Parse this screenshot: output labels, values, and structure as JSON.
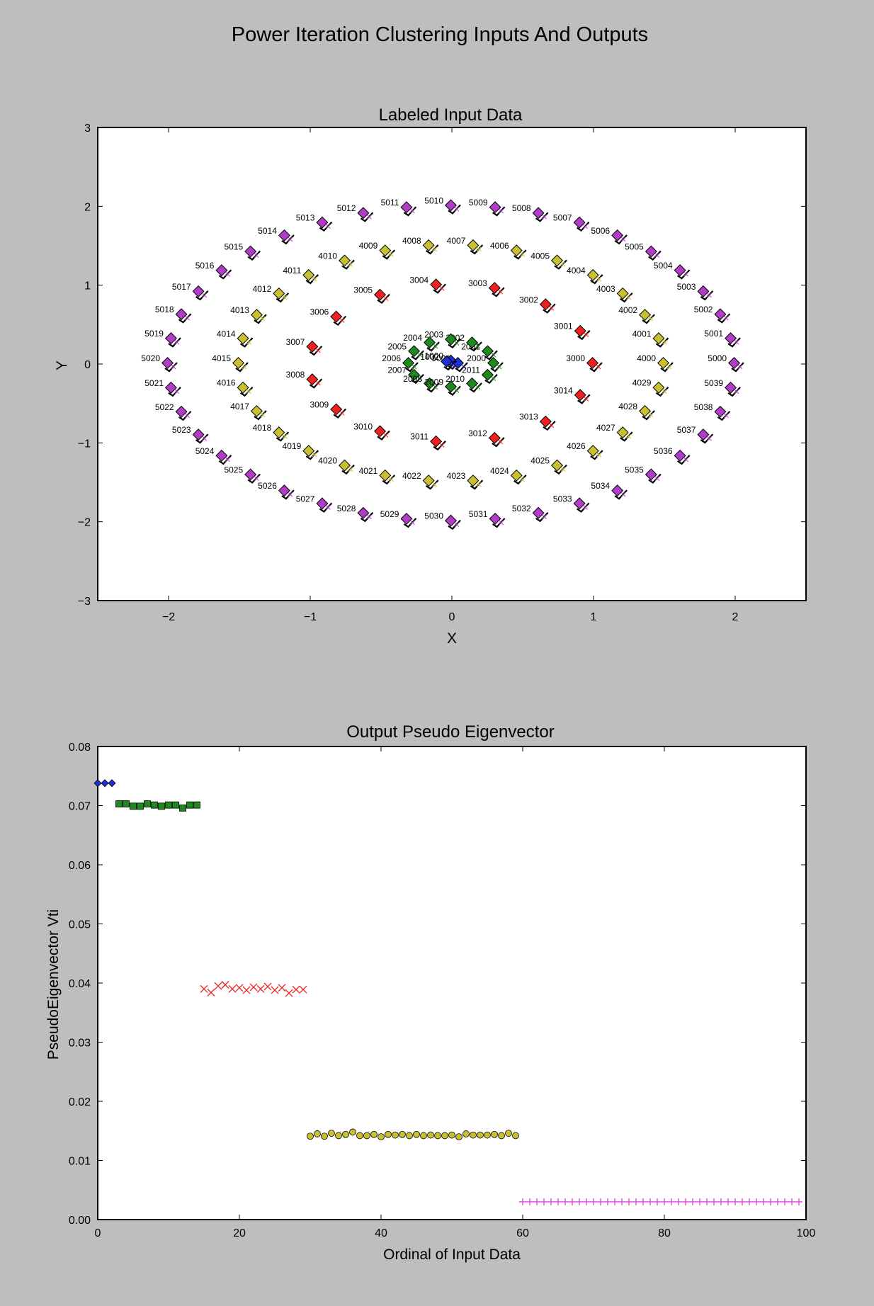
{
  "figure_title": "Power Iteration Clustering Inputs And Outputs",
  "colors": {
    "background": "#bebebe",
    "cluster1": "#1f2fd6",
    "cluster2": "#1e8a1e",
    "cluster3": "#ee2020",
    "cluster4": "#c8c030",
    "cluster5": "#b03cc8",
    "plus_marker": "#e040e0"
  },
  "chart_data": [
    {
      "type": "scatter",
      "title": "Labeled Input Data",
      "xlabel": "X",
      "ylabel": "Y",
      "xlim": [
        -2.5,
        2.5
      ],
      "ylim": [
        -3,
        3
      ],
      "xticks": [
        -2,
        -1,
        0,
        1,
        2
      ],
      "xtick_labels": [
        "−2",
        "−1",
        "0",
        "1",
        "2"
      ],
      "yticks": [
        -3,
        -2,
        -1,
        0,
        1,
        2,
        3
      ],
      "ytick_labels": [
        "−3",
        "−2",
        "−1",
        "0",
        "1",
        "2",
        "3"
      ],
      "series": [
        {
          "cluster": 1,
          "color": "#1f2fd6",
          "labels_start": 1000,
          "points": [
            [
              0.0,
              0.03
            ],
            [
              0.05,
              0.0
            ],
            [
              -0.03,
              0.02
            ]
          ],
          "show_labels": true
        },
        {
          "cluster": 2,
          "color": "#1e8a1e",
          "labels_start": 2000,
          "radius": 0.3,
          "count": 12,
          "show_labels": true
        },
        {
          "cluster": 3,
          "color": "#ee2020",
          "labels_start": 3000,
          "radius_x": 1.0,
          "radius_y": 1.0,
          "count": 15,
          "show_labels": true
        },
        {
          "cluster": 4,
          "color": "#c8c030",
          "labels_start": 4000,
          "radius_x": 1.5,
          "radius_y": 1.5,
          "count": 30,
          "show_labels": true
        },
        {
          "cluster": 5,
          "color": "#b03cc8",
          "labels_start": 5000,
          "radius_x": 2.0,
          "radius_y": 2.0,
          "count": 40,
          "show_labels": true
        }
      ],
      "grid": false
    },
    {
      "type": "scatter",
      "title": "Output Pseudo Eigenvector",
      "xlabel": "Ordinal of Input Data",
      "ylabel": "PseudoEigenvector Vti",
      "xlim": [
        0,
        100
      ],
      "ylim": [
        0,
        0.08
      ],
      "xticks": [
        0,
        20,
        40,
        60,
        80,
        100
      ],
      "xtick_labels": [
        "0",
        "20",
        "40",
        "60",
        "80",
        "100"
      ],
      "yticks": [
        0,
        0.01,
        0.02,
        0.03,
        0.04,
        0.05,
        0.06,
        0.07,
        0.08
      ],
      "ytick_labels": [
        "0.00",
        "0.01",
        "0.02",
        "0.03",
        "0.04",
        "0.05",
        "0.06",
        "0.07",
        "0.08"
      ],
      "series": [
        {
          "cluster": 1,
          "marker": "diamond",
          "color": "#1f2fd6",
          "x": [
            0,
            1,
            2
          ],
          "y": [
            0.0738,
            0.0738,
            0.0738
          ]
        },
        {
          "cluster": 2,
          "marker": "square",
          "color": "#1e8a1e",
          "x": [
            3,
            4,
            5,
            6,
            7,
            8,
            9,
            10,
            11,
            12,
            13,
            14
          ],
          "y": [
            0.0703,
            0.0703,
            0.0699,
            0.0699,
            0.0703,
            0.0701,
            0.0699,
            0.0701,
            0.0701,
            0.0696,
            0.0701,
            0.0701
          ]
        },
        {
          "cluster": 3,
          "marker": "x",
          "color": "#ee2020",
          "x": [
            15,
            16,
            17,
            18,
            19,
            20,
            21,
            22,
            23,
            24,
            25,
            26,
            27,
            28,
            29
          ],
          "y": [
            0.039,
            0.0384,
            0.0395,
            0.0397,
            0.039,
            0.0392,
            0.0388,
            0.0393,
            0.039,
            0.0394,
            0.0388,
            0.0392,
            0.0383,
            0.0389,
            0.0389
          ]
        },
        {
          "cluster": 4,
          "marker": "circle",
          "color": "#c8c030",
          "x": [
            30,
            31,
            32,
            33,
            34,
            35,
            36,
            37,
            38,
            39,
            40,
            41,
            42,
            43,
            44,
            45,
            46,
            47,
            48,
            49,
            50,
            51,
            52,
            53,
            54,
            55,
            56,
            57,
            58,
            59
          ],
          "y": [
            0.0141,
            0.0145,
            0.0141,
            0.0146,
            0.0142,
            0.0144,
            0.0148,
            0.0142,
            0.0142,
            0.0144,
            0.014,
            0.0144,
            0.0143,
            0.0144,
            0.0142,
            0.0144,
            0.0142,
            0.0143,
            0.0142,
            0.0142,
            0.0143,
            0.014,
            0.0145,
            0.0143,
            0.0143,
            0.0143,
            0.0144,
            0.0142,
            0.0146,
            0.0142
          ]
        },
        {
          "cluster": 5,
          "marker": "plus",
          "color": "#e040e0",
          "x_start": 60,
          "x_end": 99,
          "y_value": 0.003
        }
      ],
      "grid": false
    }
  ]
}
